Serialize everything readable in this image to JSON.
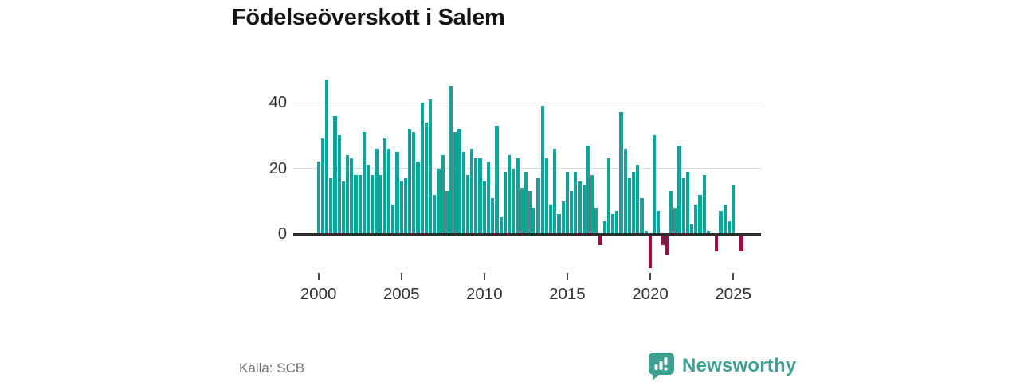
{
  "title": "Födelseöverskott i Salem",
  "source": "Källa: SCB",
  "brand": {
    "name": "Newsworthy",
    "icon": "speech-bubble-with-bar-chart-and-exclamation",
    "color": "#3f9f91"
  },
  "chart_data": {
    "type": "bar",
    "title": "Födelseöverskott i Salem",
    "frequency": "quarterly",
    "start": "2000-Q1",
    "end": "2025-Q3",
    "x_ticks": [
      2000,
      2005,
      2010,
      2015,
      2020,
      2025
    ],
    "y_ticks": [
      0,
      20,
      40
    ],
    "ylim": [
      -12,
      50
    ],
    "grid": "horizontal",
    "legend": "none",
    "positive_color": "#11a29b",
    "negative_color": "#a30a43",
    "axis_color": "#2d2d2d",
    "values": [
      22,
      29,
      47,
      17,
      36,
      30,
      16,
      24,
      23,
      18,
      18,
      31,
      21,
      18,
      26,
      18,
      29,
      26,
      9,
      25,
      16,
      17,
      32,
      31,
      22,
      40,
      34,
      41,
      12,
      20,
      24,
      13,
      45,
      31,
      32,
      25,
      18,
      26,
      23,
      23,
      16,
      22,
      11,
      33,
      5,
      19,
      24,
      20,
      23,
      14,
      19,
      13,
      8,
      17,
      39,
      23,
      9,
      26,
      6,
      10,
      19,
      13,
      19,
      16,
      15,
      27,
      18,
      8,
      -3,
      4,
      23,
      6,
      7,
      37,
      26,
      17,
      19,
      21,
      11,
      1,
      -10,
      30,
      7,
      -3,
      -6,
      13,
      8,
      27,
      17,
      19,
      3,
      9,
      12,
      18,
      1,
      0,
      -5,
      7,
      9,
      4,
      15,
      0,
      -5
    ]
  }
}
